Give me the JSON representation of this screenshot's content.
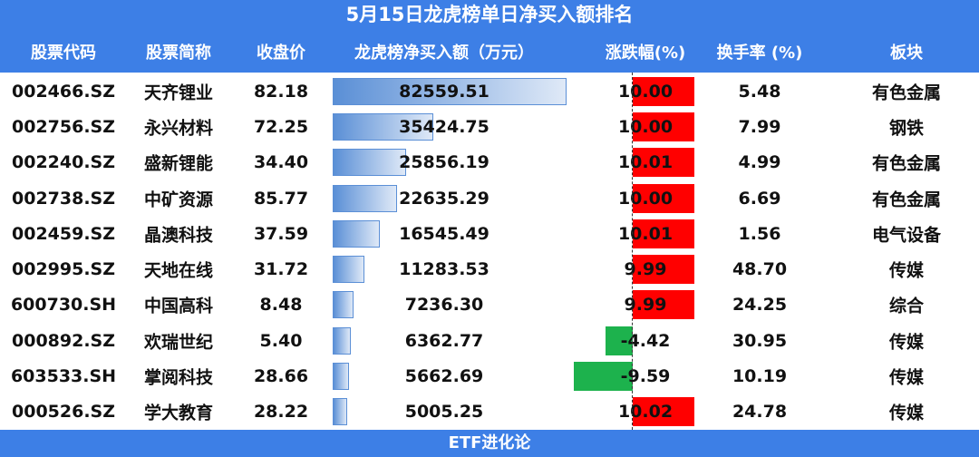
{
  "title": "5月15日龙虎榜单日净买入额排名",
  "table": {
    "headers": [
      "股票代码",
      "股票简称",
      "收盘价",
      "龙虎榜净买入额（万元）",
      "涨跌幅(%)",
      "换手率 (%)",
      "板块"
    ],
    "rows": [
      [
        "002466.SZ",
        "天齐锂业",
        "82.18",
        "82559.51",
        "10.00",
        "5.48",
        "有色金属"
      ],
      [
        "002756.SZ",
        "永兴材料",
        "72.25",
        "35424.75",
        "10.00",
        "7.99",
        "钢铁"
      ],
      [
        "002240.SZ",
        "盛新锂能",
        "34.40",
        "25856.19",
        "10.01",
        "4.99",
        "有色金属"
      ],
      [
        "002738.SZ",
        "中矿资源",
        "85.77",
        "22635.29",
        "10.00",
        "6.69",
        "有色金属"
      ],
      [
        "002459.SZ",
        "晶澳科技",
        "37.59",
        "16545.49",
        "10.01",
        "1.56",
        "电气设备"
      ],
      [
        "002995.SZ",
        "天地在线",
        "31.72",
        "11283.53",
        "9.99",
        "48.70",
        "传媒"
      ],
      [
        "600730.SH",
        "中国高科",
        "8.48",
        "7236.30",
        "9.99",
        "24.25",
        "综合"
      ],
      [
        "000892.SZ",
        "欢瑞世纪",
        "5.40",
        "6362.77",
        "-4.42",
        "30.95",
        "传媒"
      ],
      [
        "603533.SH",
        "掌阅科技",
        "28.66",
        "5662.69",
        "-9.59",
        "10.19",
        "传媒"
      ],
      [
        "000526.SZ",
        "学大教育",
        "28.22",
        "5005.25",
        "10.02",
        "24.78",
        "传媒"
      ]
    ]
  },
  "footer": "ETF进化论"
}
